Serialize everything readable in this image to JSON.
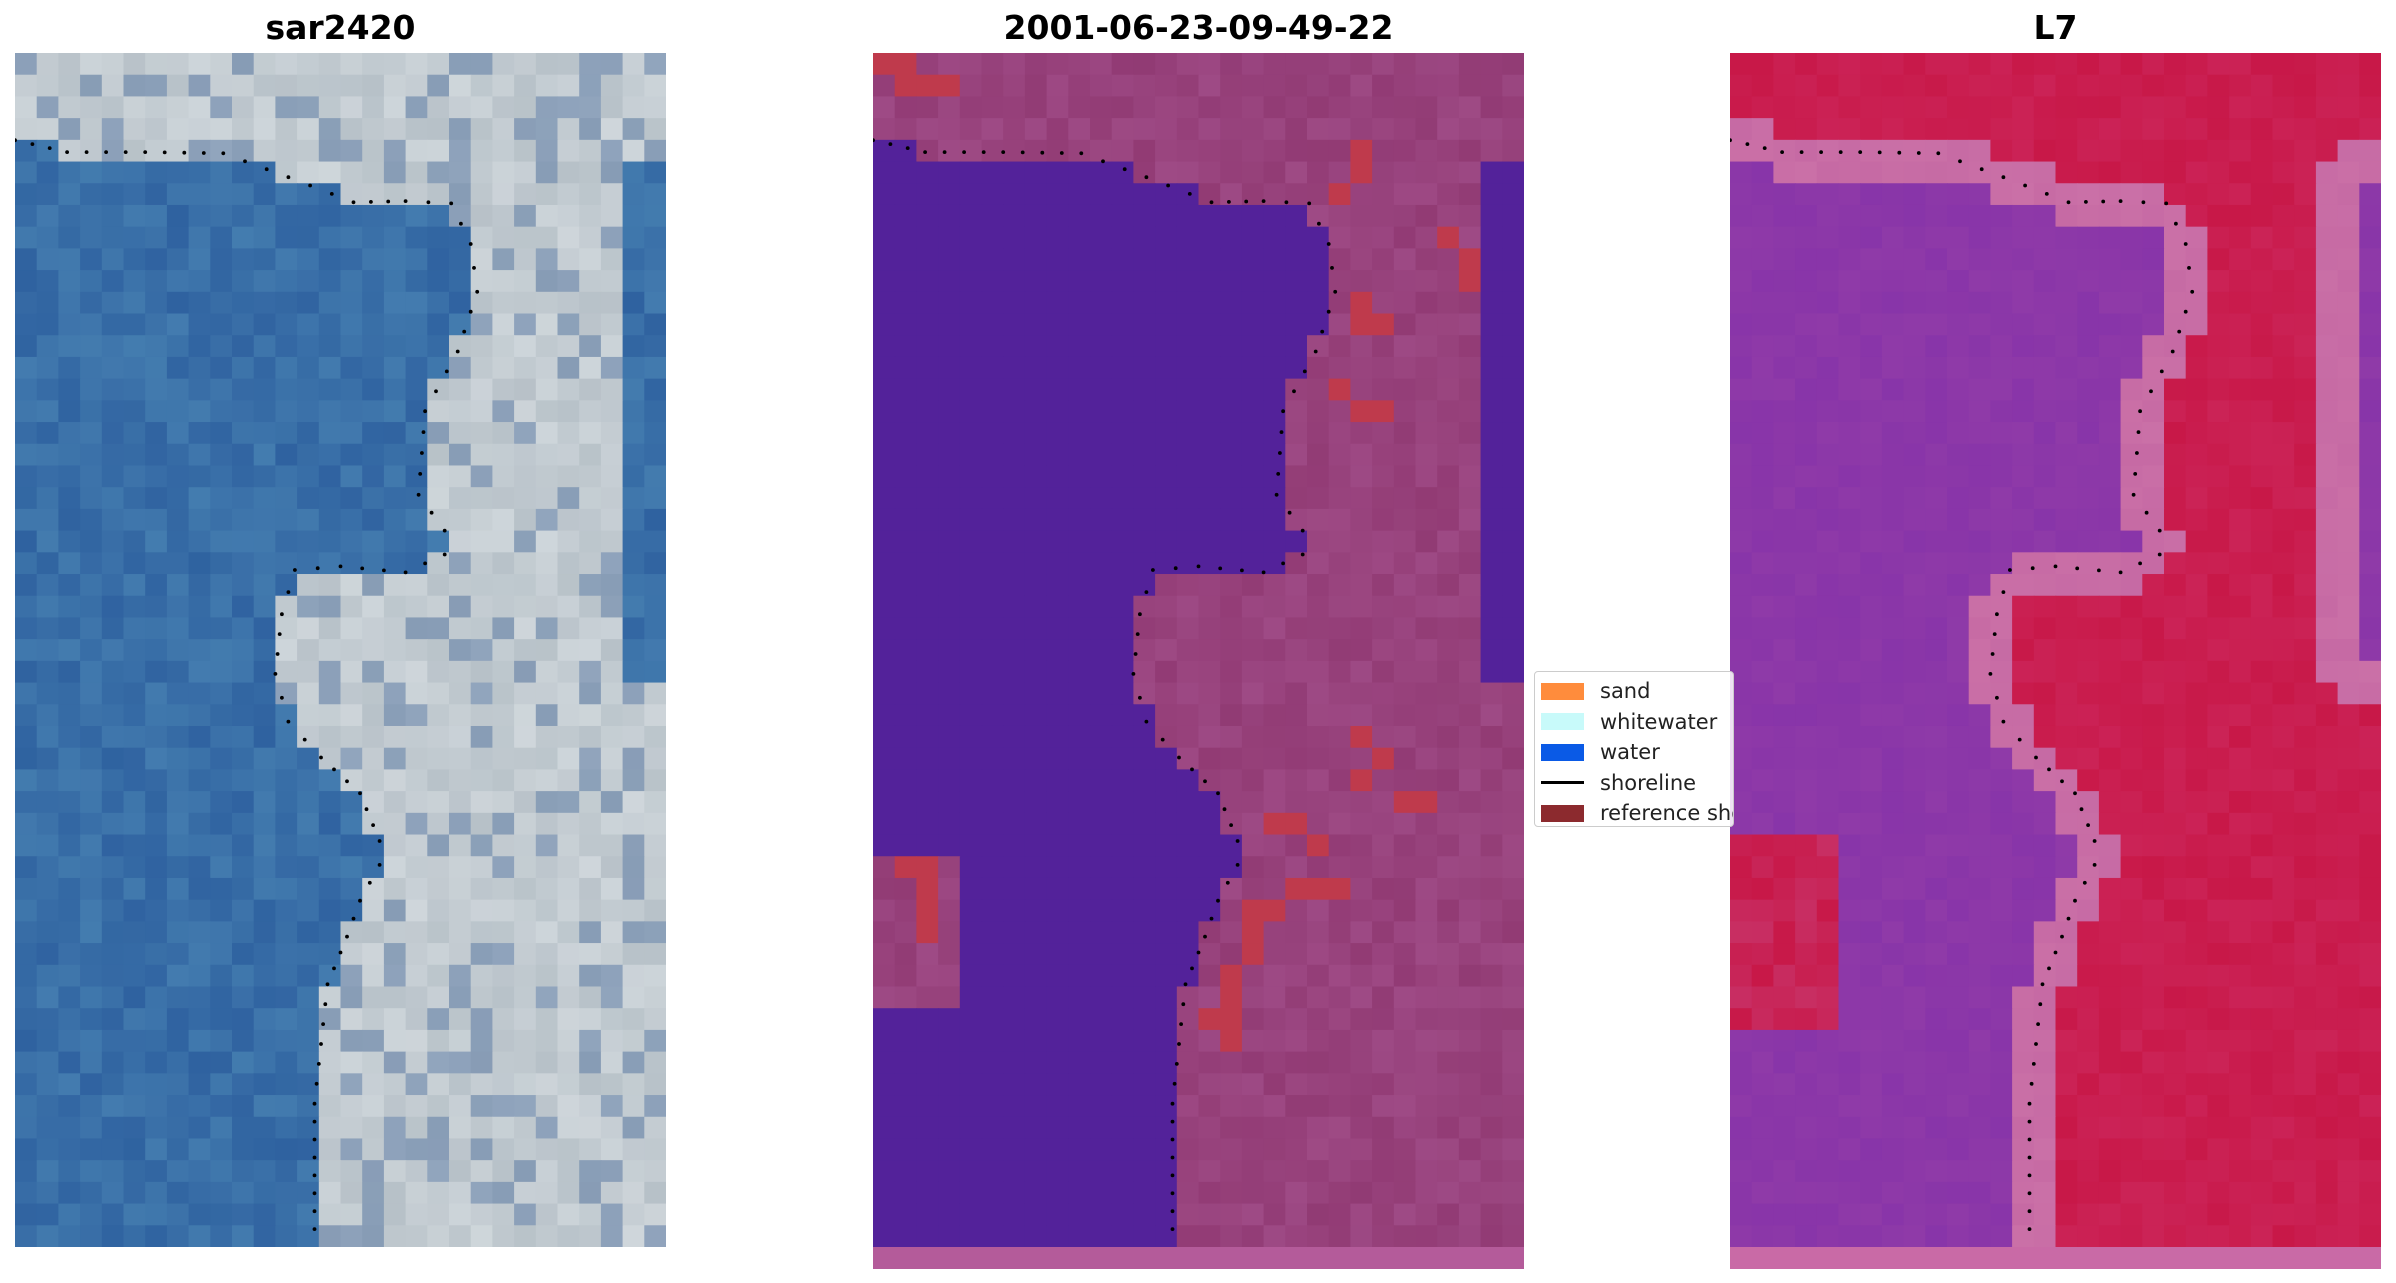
{
  "panels": [
    {
      "title": "sar2420",
      "kind": "rgb-image"
    },
    {
      "title": "2001-06-23-09-49-22",
      "kind": "classification-image"
    },
    {
      "title": "L7",
      "kind": "index-image"
    }
  ],
  "legend": {
    "items": [
      {
        "label": "sand",
        "color": "#ff8c3c",
        "marker": "patch"
      },
      {
        "label": "whitewater",
        "color": "#c8fafa",
        "marker": "patch"
      },
      {
        "label": "water",
        "color": "#0a5ae6",
        "marker": "patch"
      },
      {
        "label": "shoreline",
        "color": "#000000",
        "marker": "line"
      },
      {
        "label": "reference shoreline",
        "color": "#8c2a2e",
        "marker": "patch"
      }
    ]
  },
  "colors": {
    "water_rgb": "#2f62a0",
    "land_rgb": "#b7c1c8",
    "water_class": "#53229a",
    "land_class": "#9e4a85",
    "reference_patch": "#bf3a4c",
    "water_index": "#8f3aa8",
    "land_index": "#c81848",
    "transition_index": "#c66aa4",
    "shoreline_dots": "#000000"
  }
}
